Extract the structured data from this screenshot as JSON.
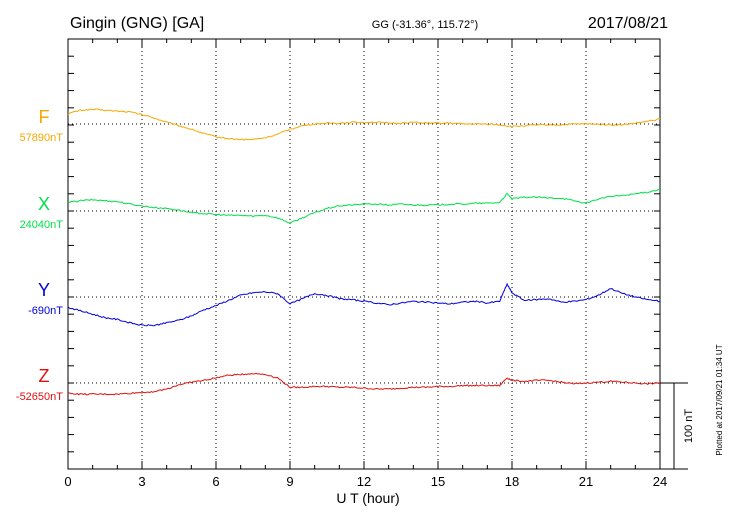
{
  "header": {
    "station": "Gingin (GNG)  [GA]",
    "coords": "GG (-31.36°, 115.72°)",
    "date": "2017/08/21"
  },
  "side_note": "Plotted at 2017/09/21 01:34 UT",
  "scale_label": "100 nT",
  "chart_data": {
    "type": "line",
    "xlabel": "U T (hour)",
    "xlim": [
      0,
      24
    ],
    "xticks": [
      "0",
      "3",
      "6",
      "9",
      "12",
      "15",
      "18",
      "21",
      "24"
    ],
    "scale_nT": 100,
    "series": [
      {
        "name": "F",
        "baseline": "57890nT",
        "color": "#f5a800",
        "points": [
          [
            0,
            12
          ],
          [
            0.5,
            16
          ],
          [
            1,
            17
          ],
          [
            1.5,
            16
          ],
          [
            2,
            15
          ],
          [
            2.5,
            14
          ],
          [
            3,
            11
          ],
          [
            3.5,
            7
          ],
          [
            4,
            2
          ],
          [
            4.5,
            -2
          ],
          [
            5,
            -6
          ],
          [
            5.5,
            -11
          ],
          [
            6,
            -15
          ],
          [
            6.5,
            -17
          ],
          [
            7,
            -18
          ],
          [
            7.5,
            -18
          ],
          [
            8,
            -16
          ],
          [
            8.5,
            -12
          ],
          [
            9,
            -6
          ],
          [
            9.5,
            -2
          ],
          [
            10,
            0
          ],
          [
            10.5,
            1
          ],
          [
            11,
            1
          ],
          [
            11.5,
            2
          ],
          [
            12,
            2
          ],
          [
            12.5,
            2
          ],
          [
            13,
            1
          ],
          [
            13.5,
            1
          ],
          [
            14,
            2
          ],
          [
            14.5,
            1
          ],
          [
            15,
            1
          ],
          [
            15.5,
            1
          ],
          [
            16,
            0
          ],
          [
            16.5,
            0
          ],
          [
            17,
            0
          ],
          [
            17.5,
            -1
          ],
          [
            18,
            -3
          ],
          [
            18.5,
            -2
          ],
          [
            19,
            -1
          ],
          [
            19.5,
            -1
          ],
          [
            20,
            -1
          ],
          [
            20.5,
            0
          ],
          [
            21,
            0
          ],
          [
            21.5,
            0
          ],
          [
            22,
            -1
          ],
          [
            22.5,
            -1
          ],
          [
            23,
            1
          ],
          [
            23.5,
            3
          ],
          [
            24,
            6
          ]
        ]
      },
      {
        "name": "X",
        "baseline": "24040nT",
        "color": "#00e04a",
        "points": [
          [
            0,
            10
          ],
          [
            0.5,
            12
          ],
          [
            1,
            13
          ],
          [
            1.5,
            12
          ],
          [
            2,
            11
          ],
          [
            2.5,
            8
          ],
          [
            3,
            6
          ],
          [
            3.5,
            4
          ],
          [
            4,
            3
          ],
          [
            4.5,
            1
          ],
          [
            5,
            -2
          ],
          [
            5.5,
            -3
          ],
          [
            6,
            -4
          ],
          [
            6.5,
            -5
          ],
          [
            7,
            -5
          ],
          [
            7.5,
            -6
          ],
          [
            8,
            -5
          ],
          [
            8.5,
            -8
          ],
          [
            9,
            -14
          ],
          [
            9.5,
            -8
          ],
          [
            10,
            -2
          ],
          [
            10.5,
            3
          ],
          [
            11,
            6
          ],
          [
            11.5,
            7
          ],
          [
            12,
            8
          ],
          [
            12.5,
            8
          ],
          [
            13,
            7
          ],
          [
            13.5,
            8
          ],
          [
            14,
            7
          ],
          [
            14.5,
            7
          ],
          [
            15,
            7
          ],
          [
            15.5,
            8
          ],
          [
            16,
            8
          ],
          [
            16.5,
            9
          ],
          [
            17,
            9
          ],
          [
            17.5,
            10
          ],
          [
            17.8,
            20
          ],
          [
            18,
            14
          ],
          [
            18.5,
            16
          ],
          [
            19,
            16
          ],
          [
            19.5,
            15
          ],
          [
            20,
            15
          ],
          [
            20.5,
            12
          ],
          [
            21,
            9
          ],
          [
            21.5,
            14
          ],
          [
            22,
            17
          ],
          [
            22.5,
            18
          ],
          [
            23,
            20
          ],
          [
            23.5,
            22
          ],
          [
            24,
            25
          ]
        ]
      },
      {
        "name": "Y",
        "baseline": "-690nT",
        "color": "#0000dd",
        "points": [
          [
            0,
            -12
          ],
          [
            0.5,
            -16
          ],
          [
            1,
            -20
          ],
          [
            1.5,
            -24
          ],
          [
            2,
            -26
          ],
          [
            2.5,
            -30
          ],
          [
            3,
            -33
          ],
          [
            3.5,
            -33
          ],
          [
            4,
            -30
          ],
          [
            4.5,
            -27
          ],
          [
            5,
            -22
          ],
          [
            5.5,
            -15
          ],
          [
            6,
            -10
          ],
          [
            6.5,
            -4
          ],
          [
            7,
            2
          ],
          [
            7.5,
            5
          ],
          [
            8,
            6
          ],
          [
            8.5,
            4
          ],
          [
            9,
            -8
          ],
          [
            9.5,
            -2
          ],
          [
            10,
            4
          ],
          [
            10.5,
            2
          ],
          [
            11,
            -2
          ],
          [
            11.5,
            -3
          ],
          [
            12,
            -5
          ],
          [
            12.5,
            -7
          ],
          [
            13,
            -9
          ],
          [
            13.5,
            -7
          ],
          [
            14,
            -5
          ],
          [
            14.5,
            -6
          ],
          [
            15,
            -7
          ],
          [
            15.5,
            -8
          ],
          [
            16,
            -6
          ],
          [
            16.5,
            -5
          ],
          [
            17,
            -7
          ],
          [
            17.5,
            -5
          ],
          [
            17.8,
            15
          ],
          [
            18,
            5
          ],
          [
            18.5,
            -4
          ],
          [
            19,
            -3
          ],
          [
            19.5,
            -2
          ],
          [
            20,
            -6
          ],
          [
            20.5,
            -5
          ],
          [
            21,
            -3
          ],
          [
            21.5,
            2
          ],
          [
            22,
            10
          ],
          [
            22.5,
            4
          ],
          [
            23,
            0
          ],
          [
            23.5,
            -3
          ],
          [
            24,
            -5
          ]
        ]
      },
      {
        "name": "Z",
        "baseline": "-52650nT",
        "color": "#e01010",
        "points": [
          [
            0,
            -12
          ],
          [
            0.5,
            -13
          ],
          [
            1,
            -13
          ],
          [
            1.5,
            -13
          ],
          [
            2,
            -13
          ],
          [
            2.5,
            -12
          ],
          [
            3,
            -11
          ],
          [
            3.5,
            -10
          ],
          [
            4,
            -7
          ],
          [
            4.5,
            -2
          ],
          [
            5,
            1
          ],
          [
            5.5,
            3
          ],
          [
            6,
            6
          ],
          [
            6.5,
            9
          ],
          [
            7,
            10
          ],
          [
            7.5,
            11
          ],
          [
            8,
            10
          ],
          [
            8.5,
            6
          ],
          [
            9,
            -5
          ],
          [
            9.5,
            -5
          ],
          [
            10,
            -4
          ],
          [
            10.5,
            -4
          ],
          [
            11,
            -5
          ],
          [
            11.5,
            -5
          ],
          [
            12,
            -6
          ],
          [
            12.5,
            -7
          ],
          [
            13,
            -7
          ],
          [
            13.5,
            -6
          ],
          [
            14,
            -5
          ],
          [
            14.5,
            -5
          ],
          [
            15,
            -4
          ],
          [
            15.5,
            -4
          ],
          [
            16,
            -3
          ],
          [
            16.5,
            -3
          ],
          [
            17,
            -3
          ],
          [
            17.5,
            -3
          ],
          [
            17.8,
            6
          ],
          [
            18,
            3
          ],
          [
            18.5,
            2
          ],
          [
            19,
            3
          ],
          [
            19.5,
            3
          ],
          [
            20,
            1
          ],
          [
            20.5,
            -1
          ],
          [
            21,
            0
          ],
          [
            21.5,
            1
          ],
          [
            22,
            2
          ],
          [
            22.5,
            1
          ],
          [
            23,
            0
          ],
          [
            23.5,
            -1
          ],
          [
            24,
            0
          ]
        ]
      }
    ]
  }
}
